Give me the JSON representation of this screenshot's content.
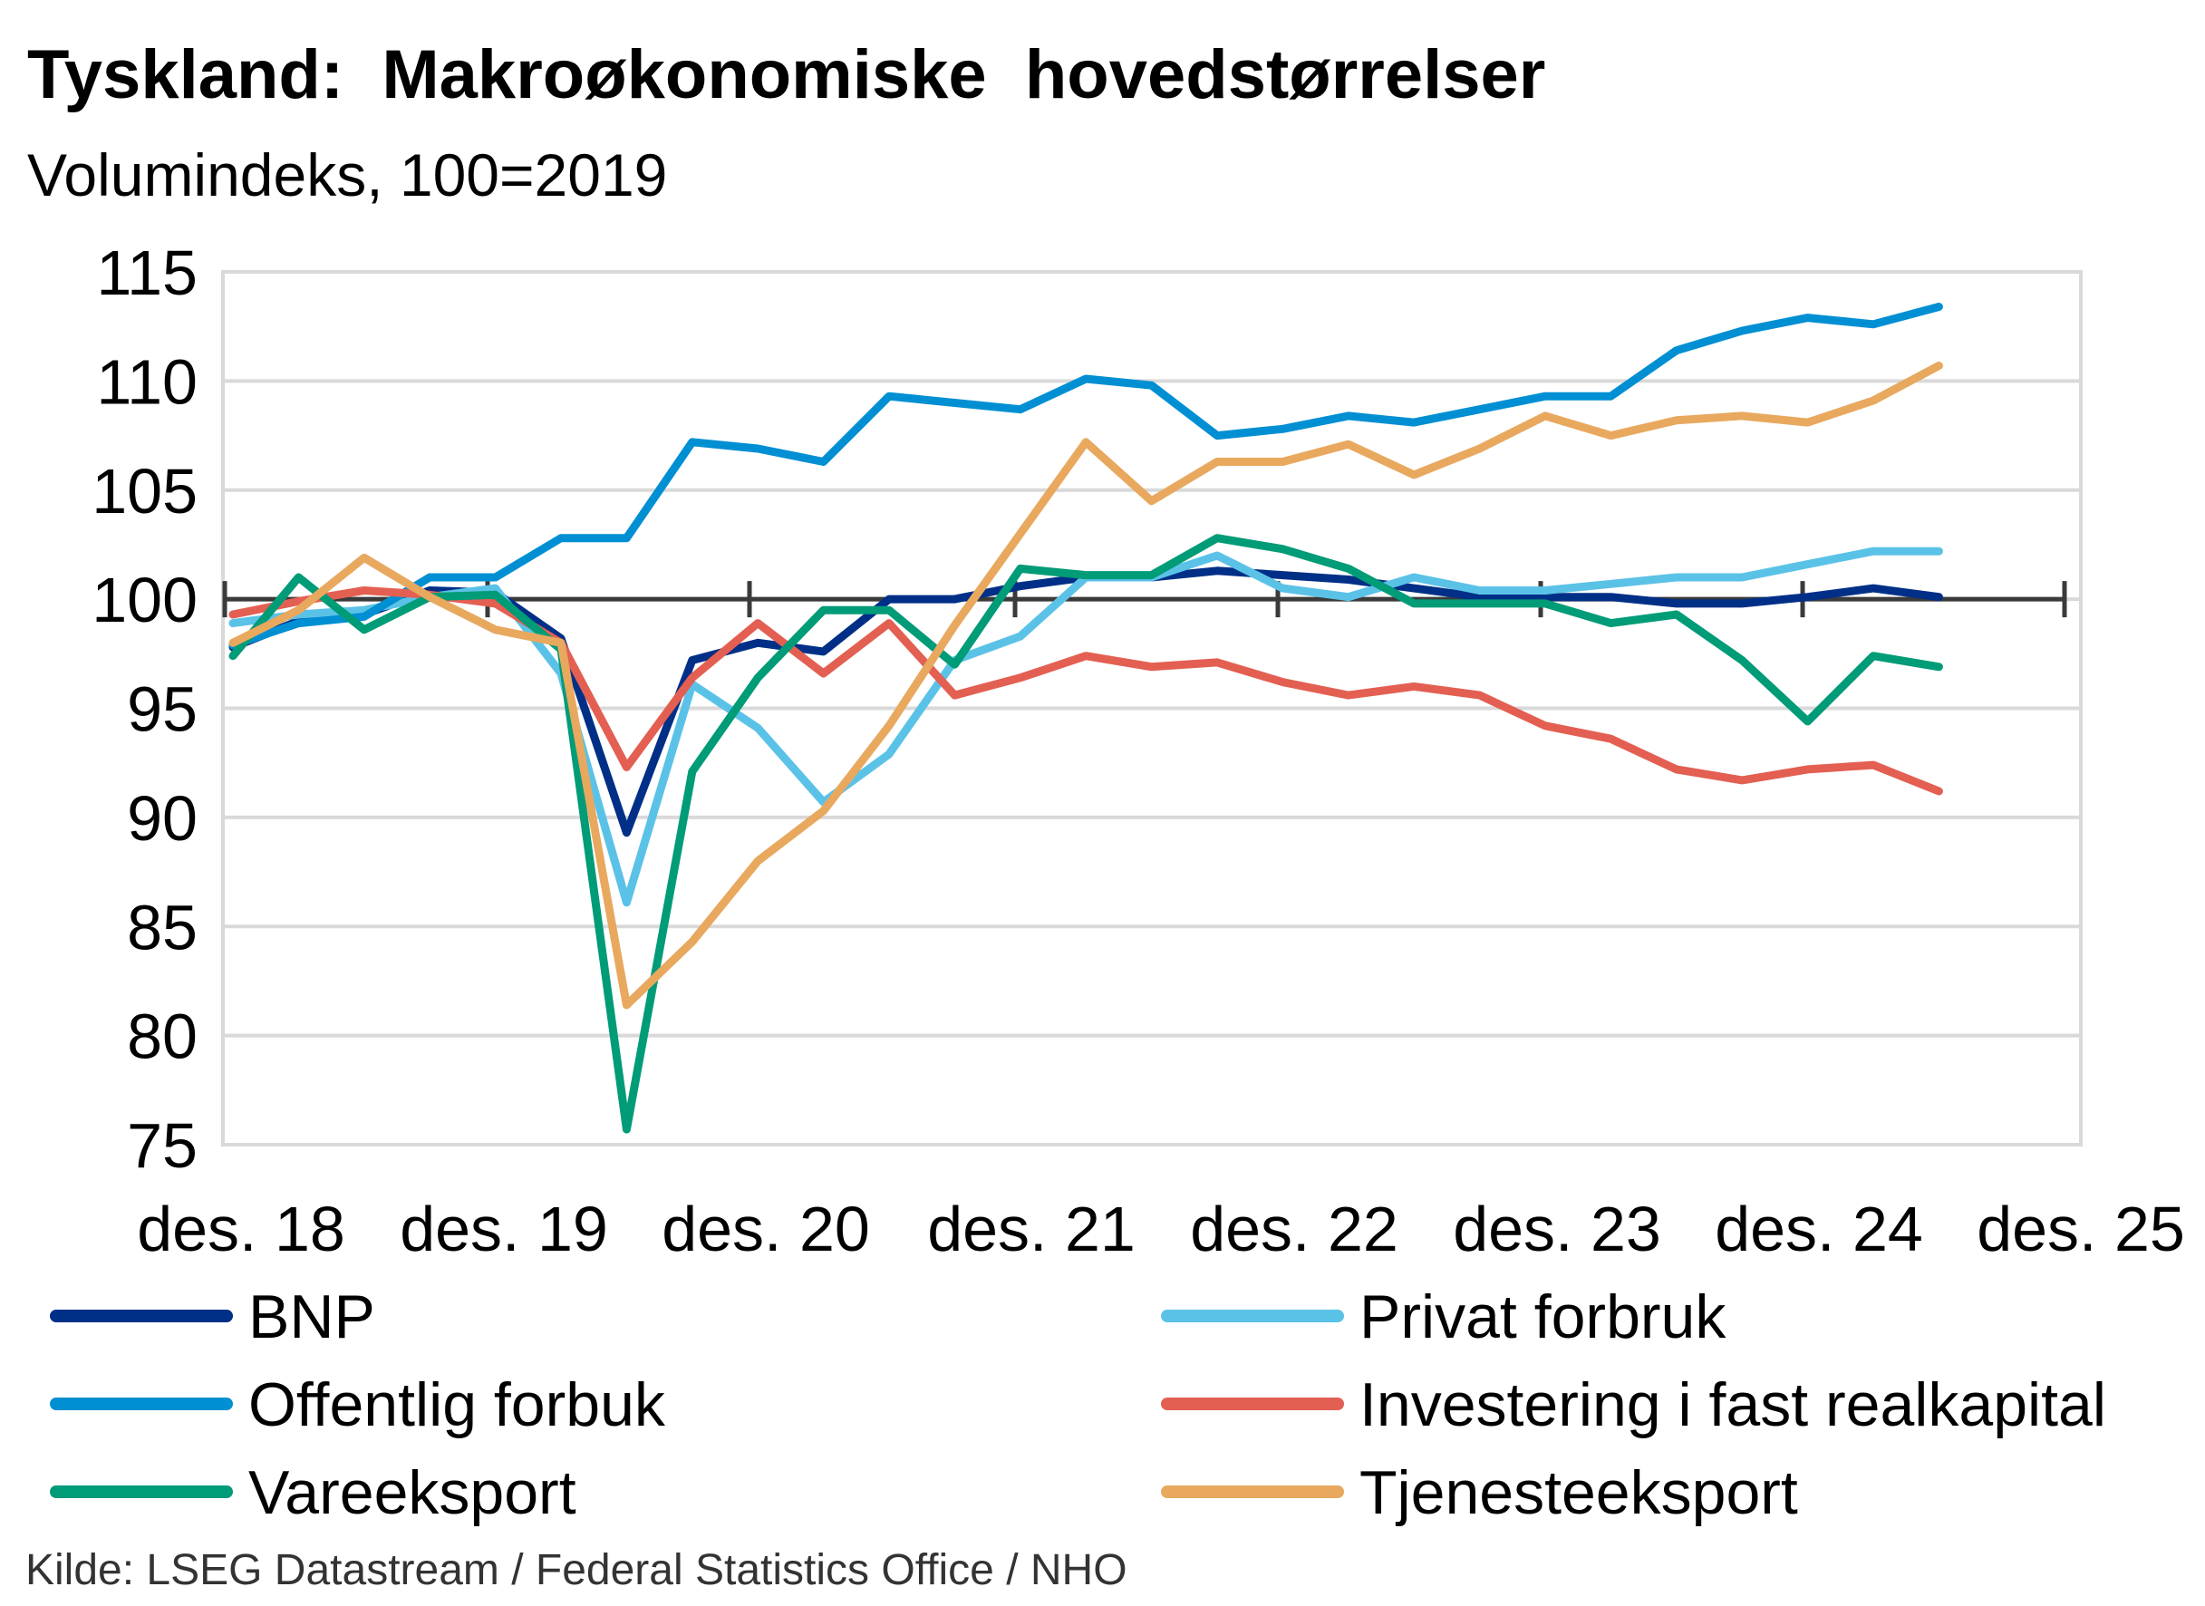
{
  "chart_data": {
    "type": "line",
    "title": "Tyskland:  Makroøkonomiske  hovedstørrelser",
    "subtitle": "Volumindeks, 100=2019",
    "source": "Kilde: LSEG Datastream / Federal Statistics Office / NHO",
    "xlabel": "",
    "ylabel": "",
    "ylim": [
      75,
      115
    ],
    "yticks": [
      "115",
      "110",
      "105",
      "100",
      "95",
      "90",
      "85",
      "80",
      "75"
    ],
    "xticks": [
      "des. 18",
      "des. 19",
      "des. 20",
      "des. 21",
      "des. 22",
      "des. 23",
      "des. 24",
      "des. 25"
    ],
    "grid": true,
    "reference_line": 100,
    "legend_position": "bottom",
    "x": [
      "2018Q4",
      "2019Q1",
      "2019Q2",
      "2019Q3",
      "2019Q4",
      "2020Q1",
      "2020Q2",
      "2020Q3",
      "2020Q4",
      "2021Q1",
      "2021Q2",
      "2021Q3",
      "2021Q4",
      "2022Q1",
      "2022Q2",
      "2022Q3",
      "2022Q4",
      "2023Q1",
      "2023Q2",
      "2023Q3",
      "2023Q4",
      "2024Q1",
      "2024Q2",
      "2024Q3",
      "2024Q4",
      "2025Q1",
      "2025Q2"
    ],
    "series": [
      {
        "name": "BNP",
        "color": "#002F87",
        "values": [
          97.8,
          99.0,
          99.3,
          100.4,
          100.3,
          98.2,
          89.3,
          97.2,
          98.0,
          97.6,
          100.0,
          100.0,
          100.6,
          101.0,
          101.0,
          101.3,
          101.1,
          100.9,
          100.5,
          100.1,
          100.1,
          100.1,
          99.8,
          99.8,
          100.1,
          100.5,
          100.1
        ]
      },
      {
        "name": "Privat forbruk",
        "color": "#5BC2E7",
        "values": [
          98.9,
          99.3,
          99.5,
          100.1,
          100.5,
          96.6,
          86.1,
          96.1,
          94.1,
          90.7,
          92.9,
          97.2,
          98.3,
          101.0,
          101.0,
          102.0,
          100.5,
          100.1,
          101.0,
          100.4,
          100.4,
          100.7,
          101.0,
          101.0,
          101.6,
          102.2,
          102.2
        ]
      },
      {
        "name": "Offentlig forbuk",
        "color": "#008FD3",
        "values": [
          97.9,
          98.9,
          99.2,
          101.0,
          101.0,
          102.8,
          102.8,
          107.2,
          106.9,
          106.3,
          109.3,
          109.0,
          108.7,
          110.1,
          109.8,
          107.5,
          107.8,
          108.4,
          108.1,
          108.7,
          109.3,
          109.3,
          111.4,
          112.3,
          112.9,
          112.6,
          113.4
        ]
      },
      {
        "name": "Investering i fast realkapital",
        "color": "#E35F52",
        "values": [
          99.3,
          99.9,
          100.4,
          100.2,
          99.8,
          98.0,
          92.3,
          96.4,
          98.9,
          96.6,
          98.9,
          95.6,
          96.4,
          97.4,
          96.9,
          97.1,
          96.2,
          95.6,
          96.0,
          95.6,
          94.2,
          93.6,
          92.2,
          91.7,
          92.2,
          92.4,
          91.2
        ]
      },
      {
        "name": "Vareeksport",
        "color": "#009B77",
        "values": [
          97.4,
          101.0,
          98.6,
          100.1,
          100.2,
          97.7,
          75.7,
          92.1,
          96.4,
          99.5,
          99.5,
          97.0,
          101.4,
          101.1,
          101.1,
          102.8,
          102.3,
          101.4,
          99.8,
          99.8,
          99.8,
          98.9,
          99.3,
          97.2,
          94.4,
          97.4,
          96.9
        ]
      },
      {
        "name": "Tjenesteeksport",
        "color": "#E8A85E",
        "values": [
          98.0,
          99.5,
          101.9,
          100.1,
          98.6,
          98.0,
          81.4,
          84.3,
          88.0,
          90.3,
          94.2,
          98.8,
          103.0,
          107.2,
          104.5,
          106.3,
          106.3,
          107.1,
          105.7,
          106.9,
          108.4,
          107.5,
          108.2,
          108.4,
          108.1,
          109.1,
          110.7
        ]
      }
    ]
  }
}
